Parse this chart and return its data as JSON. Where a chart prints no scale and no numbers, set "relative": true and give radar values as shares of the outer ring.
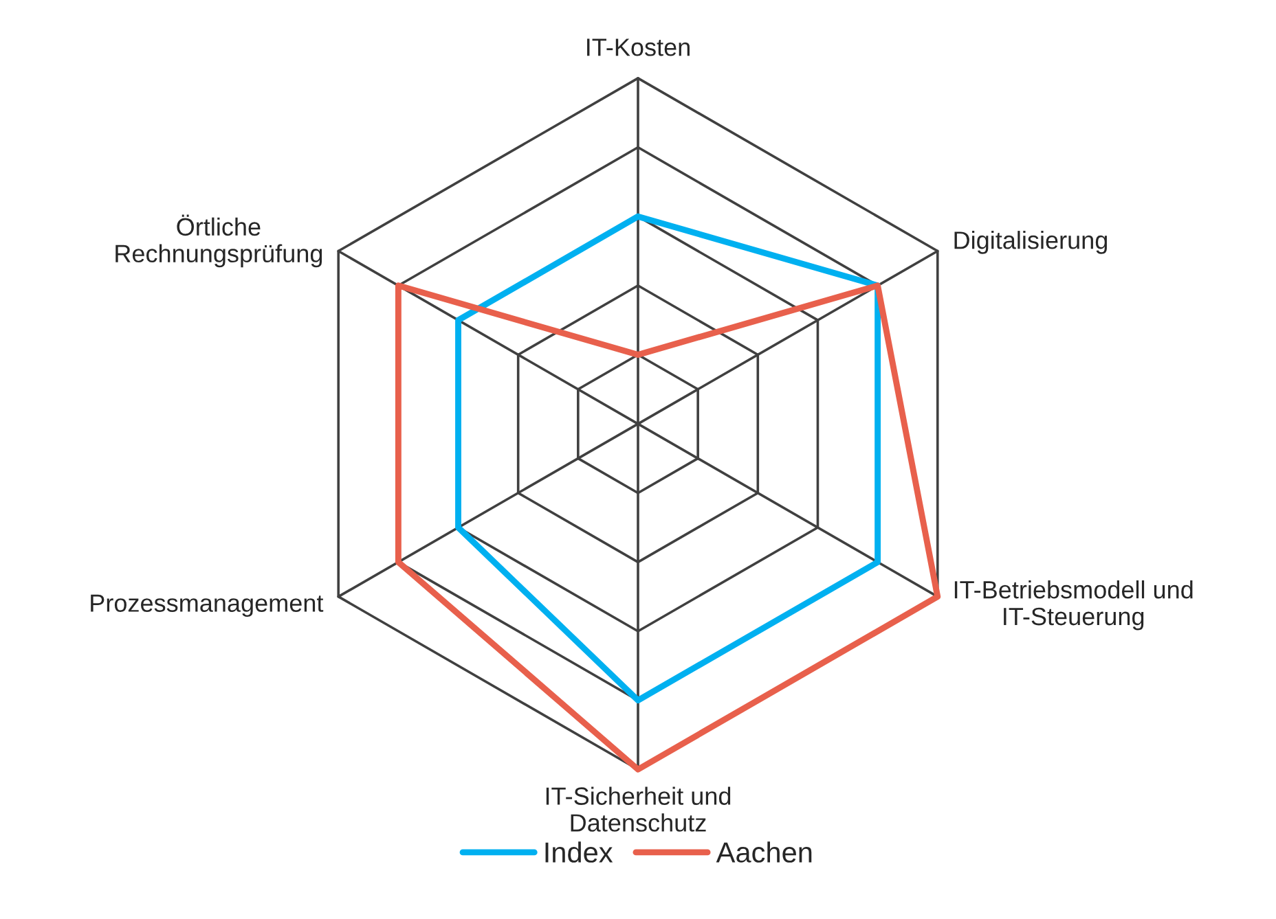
{
  "chart_data": {
    "type": "radar",
    "relative": true,
    "grid": true,
    "legend": "bottom",
    "categories": [
      "IT-Kosten",
      "Digitalisierung",
      "IT-Betriebsmodell und\nIT-Steuerung",
      "IT-Sicherheit und\nDatenschutz",
      "Prozessmanagement",
      "Örtliche\nRechnungsprüfung"
    ],
    "series": [
      {
        "name": "Index",
        "color": "#00b0f0",
        "values": [
          0.6,
          0.8,
          0.8,
          0.8,
          0.6,
          0.6
        ]
      },
      {
        "name": "Aachen",
        "color": "#e8604c",
        "values": [
          0.2,
          0.8,
          1.0,
          1.0,
          0.8,
          0.8
        ]
      }
    ]
  }
}
